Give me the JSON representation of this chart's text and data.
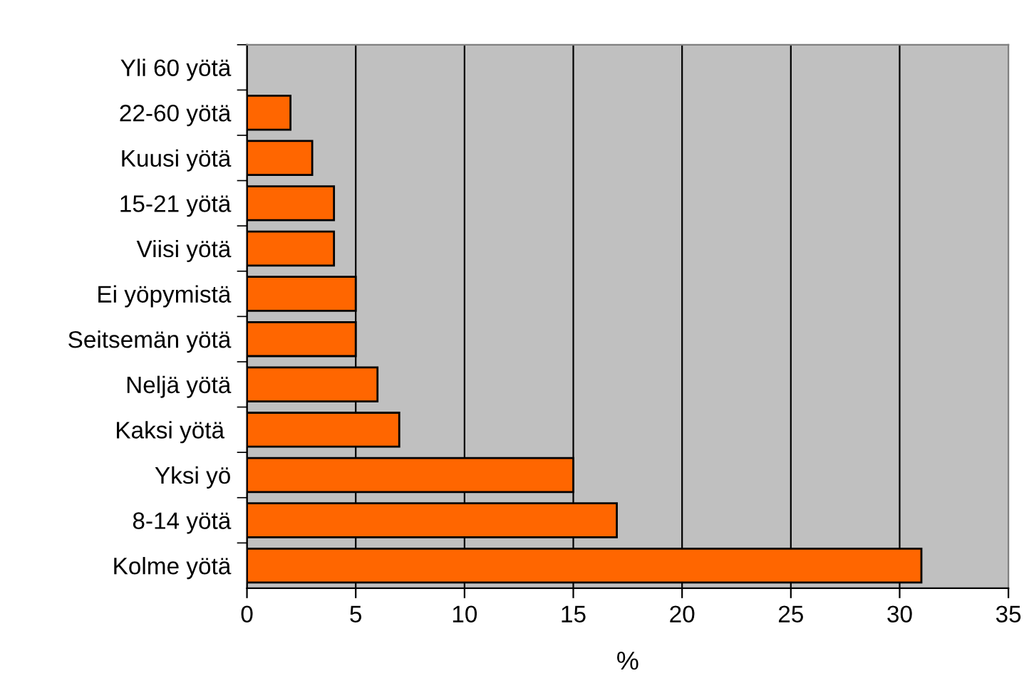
{
  "chart_data": {
    "type": "bar",
    "orientation": "horizontal",
    "xlabel": "%",
    "categories": [
      "Yli 60 yötä",
      "22-60 yötä",
      "Kuusi yötä",
      "15-21 yötä",
      "Viisi yötä",
      "Ei yöpymistä",
      "Seitsemän yötä",
      "Neljä yötä",
      "Kaksi yötä ",
      "Yksi yö",
      "8-14 yötä",
      "Kolme yötä"
    ],
    "values": [
      0,
      2,
      3,
      4,
      4,
      5,
      5,
      6,
      7,
      15,
      17,
      31
    ],
    "color": "#ff6600",
    "xlim": [
      0,
      35
    ],
    "xticks": [
      0,
      5,
      10,
      15,
      20,
      25,
      30,
      35
    ],
    "grid": "x",
    "legend": false
  }
}
